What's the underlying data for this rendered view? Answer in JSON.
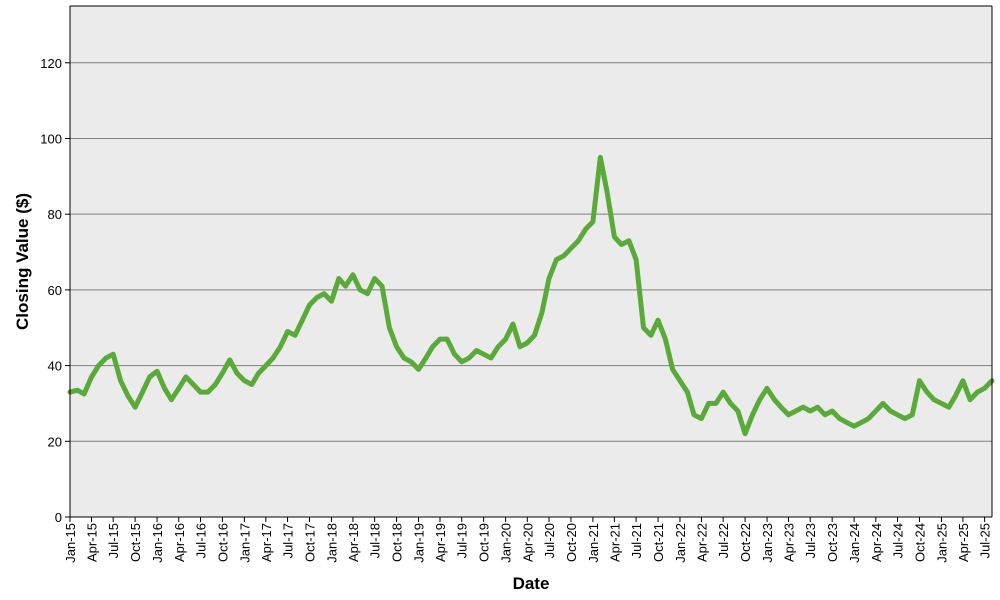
{
  "chart_data": {
    "type": "line",
    "title": "",
    "xlabel": "Date",
    "ylabel": "Closing Value ($)",
    "ylim": [
      0,
      135
    ],
    "yticks": [
      0,
      20,
      40,
      60,
      80,
      100,
      120
    ],
    "xlim": [
      "2015-01-01",
      "2025-08-01"
    ],
    "xtick_labels": [
      "Jan-15",
      "Apr-15",
      "Jul-15",
      "Oct-15",
      "Jan-16",
      "Apr-16",
      "Jul-16",
      "Oct-16",
      "Jan-17",
      "Apr-17",
      "Jul-17",
      "Oct-17",
      "Jan-18",
      "Apr-18",
      "Jul-18",
      "Oct-18",
      "Jan-19",
      "Apr-19",
      "Jul-19",
      "Oct-19",
      "Jan-20",
      "Apr-20",
      "Jul-20",
      "Oct-20",
      "Jan-21",
      "Apr-21",
      "Jul-21",
      "Oct-21",
      "Jan-22",
      "Apr-22",
      "Jul-22",
      "Oct-22",
      "Jan-23",
      "Apr-23",
      "Jul-23",
      "Oct-23",
      "Jan-24",
      "Apr-24",
      "Jul-24",
      "Oct-24",
      "Jan-25",
      "Apr-25",
      "Jul-25"
    ],
    "grid": true,
    "colors": {
      "line": "#5aaa3a",
      "plot_bg": "#ebebeb",
      "grid": "#7f7f7f"
    },
    "series": [
      {
        "x": [
          "2015-01-01",
          "2015-02-01",
          "2015-03-01",
          "2015-04-01",
          "2015-05-01",
          "2015-06-01",
          "2015-07-01",
          "2015-08-01",
          "2015-09-01",
          "2015-10-01",
          "2015-11-01",
          "2015-12-01",
          "2016-01-01",
          "2016-02-01",
          "2016-03-01",
          "2016-04-01",
          "2016-05-01",
          "2016-06-01",
          "2016-07-01",
          "2016-08-01",
          "2016-09-01",
          "2016-10-01",
          "2016-11-01",
          "2016-12-01",
          "2017-01-01",
          "2017-02-01",
          "2017-03-01",
          "2017-04-01",
          "2017-05-01",
          "2017-06-01",
          "2017-07-01",
          "2017-08-01",
          "2017-09-01",
          "2017-10-01",
          "2017-11-01",
          "2017-12-01",
          "2018-01-01",
          "2018-02-01",
          "2018-03-01",
          "2018-04-01",
          "2018-05-01",
          "2018-06-01",
          "2018-07-01",
          "2018-08-01",
          "2018-09-01",
          "2018-10-01",
          "2018-11-01",
          "2018-12-01",
          "2019-01-01",
          "2019-02-01",
          "2019-03-01",
          "2019-04-01",
          "2019-05-01",
          "2019-06-01",
          "2019-07-01",
          "2019-08-01",
          "2019-09-01",
          "2019-10-01",
          "2019-11-01",
          "2019-12-01",
          "2020-01-01",
          "2020-02-01",
          "2020-03-01",
          "2020-04-01",
          "2020-05-01",
          "2020-06-01",
          "2020-07-01",
          "2020-08-01",
          "2020-09-01",
          "2020-10-01",
          "2020-11-01",
          "2020-12-01",
          "2021-01-01",
          "2021-02-01",
          "2021-03-01",
          "2021-04-01",
          "2021-05-01",
          "2021-06-01",
          "2021-07-01",
          "2021-08-01",
          "2021-09-01",
          "2021-10-01",
          "2021-11-01",
          "2021-12-01",
          "2022-01-01",
          "2022-02-01",
          "2022-03-01",
          "2022-04-01",
          "2022-05-01",
          "2022-06-01",
          "2022-07-01",
          "2022-08-01",
          "2022-09-01",
          "2022-10-01",
          "2022-11-01",
          "2022-12-01",
          "2023-01-01",
          "2023-02-01",
          "2023-03-01",
          "2023-04-01",
          "2023-05-01",
          "2023-06-01",
          "2023-07-01",
          "2023-08-01",
          "2023-09-01",
          "2023-10-01",
          "2023-11-01",
          "2023-12-01",
          "2024-01-01",
          "2024-02-01",
          "2024-03-01",
          "2024-04-01",
          "2024-05-01",
          "2024-06-01",
          "2024-07-01",
          "2024-08-01",
          "2024-09-01",
          "2024-10-01",
          "2024-11-01",
          "2024-12-01",
          "2025-01-01",
          "2025-02-01",
          "2025-03-01",
          "2025-04-01",
          "2025-05-01",
          "2025-06-01",
          "2025-07-01",
          "2025-08-01"
        ],
        "y": [
          33,
          33.5,
          32.5,
          37,
          40,
          42,
          43,
          36,
          32,
          29,
          33,
          37,
          38.5,
          34,
          31,
          34,
          37,
          35,
          33,
          33,
          35,
          38,
          41.5,
          38,
          36,
          35,
          38,
          40,
          42,
          45,
          49,
          48,
          52,
          56,
          58,
          59,
          57,
          63,
          61,
          64,
          60,
          59,
          63,
          61,
          50,
          45,
          42,
          41,
          39,
          42,
          45,
          47,
          47,
          43,
          41,
          42,
          44,
          43,
          42,
          45,
          47,
          51,
          45,
          46,
          48,
          54,
          63,
          68,
          69,
          71,
          73,
          76,
          78,
          95,
          86,
          74,
          72,
          73,
          68,
          50,
          48,
          52,
          47,
          39,
          36,
          33,
          27,
          26,
          30,
          30,
          33,
          30,
          28,
          22,
          27,
          31,
          34,
          31,
          29,
          27,
          28,
          29,
          28,
          29,
          27,
          28,
          26,
          25,
          24,
          25,
          26,
          28,
          30,
          28,
          27,
          26,
          27,
          36,
          33,
          31,
          30,
          29,
          32,
          36,
          31,
          33,
          34,
          36
        ]
      }
    ]
  }
}
